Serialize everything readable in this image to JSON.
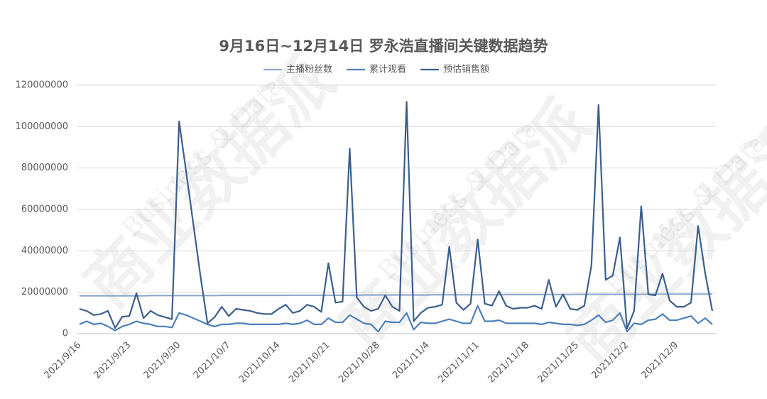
{
  "chart_data": {
    "type": "line",
    "title": "9月16日~12月14日  罗永浩直播间关键数据趋势",
    "watermark": [
      "商业数据派",
      "Business & Data"
    ],
    "categories": [
      "2021/9/16",
      null,
      null,
      null,
      null,
      null,
      null,
      "2021/9/23",
      null,
      null,
      null,
      null,
      null,
      null,
      "2021/9/30",
      null,
      null,
      null,
      null,
      null,
      null,
      "2021/10/7",
      null,
      null,
      null,
      null,
      null,
      null,
      "2021/10/14",
      null,
      null,
      null,
      null,
      null,
      null,
      "2021/10/21",
      null,
      null,
      null,
      null,
      null,
      null,
      "2021/10/28",
      null,
      null,
      null,
      null,
      null,
      null,
      "2021/11/4",
      null,
      null,
      null,
      null,
      null,
      null,
      "2021/11/11",
      null,
      null,
      null,
      null,
      null,
      null,
      "2021/11/18",
      null,
      null,
      null,
      null,
      null,
      null,
      "2021/11/25",
      null,
      null,
      null,
      null,
      null,
      null,
      "2021/12/2",
      null,
      null,
      null,
      null,
      null,
      null,
      "2021/12/9",
      null,
      null,
      null,
      null,
      null
    ],
    "series": [
      {
        "name": "主播粉丝数",
        "color": "#8fa9cc",
        "values": [
          18300000,
          18300000,
          18300000,
          18300000,
          18300000,
          18300000,
          18300000,
          18300000,
          18300000,
          18300000,
          18400000,
          18400000,
          18400000,
          18400000,
          18400000,
          18400000,
          18400000,
          18400000,
          18400000,
          18400000,
          18500000,
          18500000,
          18500000,
          18500000,
          18500000,
          18500000,
          18500000,
          18500000,
          18500000,
          18500000,
          18600000,
          18600000,
          18600000,
          18600000,
          18600000,
          18600000,
          18600000,
          18600000,
          18600000,
          18600000,
          18700000,
          18700000,
          18700000,
          18700000,
          18700000,
          18700000,
          18700000,
          18700000,
          18700000,
          18700000,
          18800000,
          18800000,
          18800000,
          18800000,
          18800000,
          18800000,
          18800000,
          18800000,
          18800000,
          18800000,
          18900000,
          18900000,
          18900000,
          18900000,
          18900000,
          18900000,
          18900000,
          18900000,
          18900000,
          18900000,
          19000000,
          19000000,
          19000000,
          19000000,
          19000000,
          19000000,
          19000000,
          19000000,
          19000000,
          19000000,
          19100000,
          19100000,
          19100000,
          19100000,
          19100000,
          19100000,
          19100000,
          19100000,
          19100000,
          19100000
        ]
      },
      {
        "name": "累计观看",
        "color": "#4e7fb8",
        "values": [
          4500000,
          6000000,
          4500000,
          5000000,
          3500000,
          1500000,
          3500000,
          4500000,
          6000000,
          5000000,
          4500000,
          3500000,
          3500000,
          3000000,
          10000000,
          9000000,
          7500000,
          6000000,
          4500000,
          3500000,
          4500000,
          4500000,
          5000000,
          5000000,
          4500000,
          4500000,
          4500000,
          4500000,
          4500000,
          5000000,
          4500000,
          5000000,
          6500000,
          4500000,
          4500000,
          7500000,
          5500000,
          5500000,
          9000000,
          7000000,
          5000000,
          4500000,
          1000000,
          6000000,
          5500000,
          5500000,
          10000000,
          2000000,
          5500000,
          5000000,
          5000000,
          6000000,
          7000000,
          6000000,
          5000000,
          5000000,
          13500000,
          6000000,
          6000000,
          6500000,
          5000000,
          5000000,
          5000000,
          5000000,
          5000000,
          4500000,
          5500000,
          5000000,
          4500000,
          4500000,
          4000000,
          4500000,
          6500000,
          9000000,
          5500000,
          6500000,
          10000000,
          1000000,
          5000000,
          4500000,
          6500000,
          7000000,
          9500000,
          6500000,
          6500000,
          7500000,
          8500000,
          5000000,
          7500000,
          4500000
        ]
      },
      {
        "name": "预估销售额",
        "color": "#3c5f8c",
        "values": [
          12000000,
          11000000,
          9000000,
          9500000,
          11000000,
          2700000,
          8200000,
          8500000,
          19500000,
          7500000,
          11000000,
          9000000,
          8000000,
          7000000,
          102500000,
          78000000,
          53000000,
          28000000,
          5000000,
          8000000,
          13000000,
          8500000,
          12000000,
          11500000,
          11000000,
          10000000,
          9500000,
          9500000,
          12000000,
          14000000,
          10000000,
          11000000,
          14000000,
          13000000,
          10500000,
          34000000,
          15000000,
          15500000,
          89500000,
          17500000,
          13000000,
          11000000,
          12000000,
          18500000,
          13000000,
          11000000,
          112000000,
          6000000,
          10000000,
          12500000,
          13000000,
          14000000,
          42000000,
          15000000,
          11500000,
          14500000,
          45500000,
          14500000,
          13500000,
          20500000,
          13500000,
          12000000,
          12500000,
          12500000,
          13500000,
          12000000,
          26000000,
          13000000,
          19000000,
          12000000,
          11500000,
          13500000,
          33000000,
          110500000,
          26000000,
          28000000,
          46500000,
          2500000,
          11000000,
          61500000,
          19000000,
          18500000,
          29000000,
          16000000,
          13000000,
          13000000,
          15000000,
          52000000,
          29000000,
          11000000
        ]
      }
    ],
    "ylim": [
      0,
      120000000
    ],
    "yticks": [
      0,
      20000000,
      40000000,
      60000000,
      80000000,
      100000000,
      120000000
    ],
    "grid": true,
    "legend": "top"
  }
}
